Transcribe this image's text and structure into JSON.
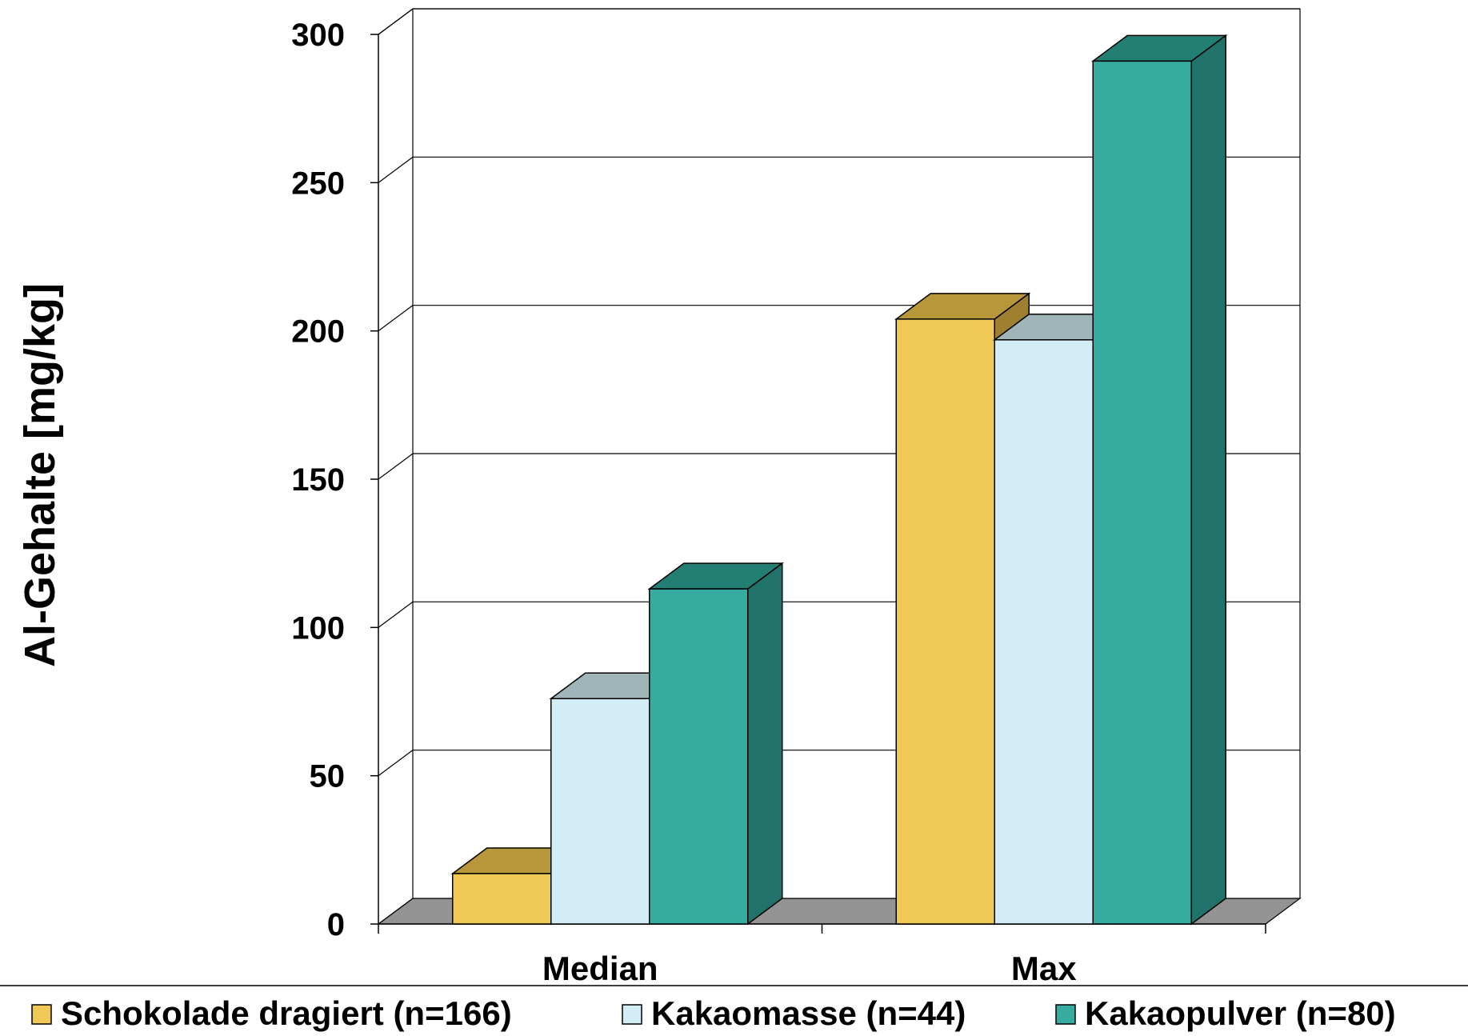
{
  "chart_data": {
    "type": "bar",
    "categories": [
      "Median",
      "Max"
    ],
    "series": [
      {
        "name": "Schokolade dragiert (n=166)",
        "values": [
          17,
          204
        ],
        "color": "#F0C855",
        "top_color": "#B8973A",
        "side_color": "#9E8030"
      },
      {
        "name": "Kakaomasse (n=44)",
        "values": [
          76,
          197
        ],
        "color": "#D2EDF5",
        "top_color": "#A0B5B8",
        "side_color": "#8FA4A8"
      },
      {
        "name": "Kakaopulver (n=80)",
        "values": [
          113,
          291
        ],
        "color": "#36ACA0",
        "top_color": "#237F74",
        "side_color": "#21726A"
      }
    ],
    "title": "",
    "xlabel": "",
    "ylabel": "Al-Gehalte [mg/kg]",
    "ylim": [
      0,
      300
    ],
    "yticks": [
      0,
      50,
      100,
      150,
      200,
      250,
      300
    ],
    "ytick_labels": [
      "0",
      "50",
      "100",
      "150",
      "200",
      "250",
      "300"
    ],
    "grid": true,
    "legend": "bottom",
    "style": "3d-bar"
  }
}
